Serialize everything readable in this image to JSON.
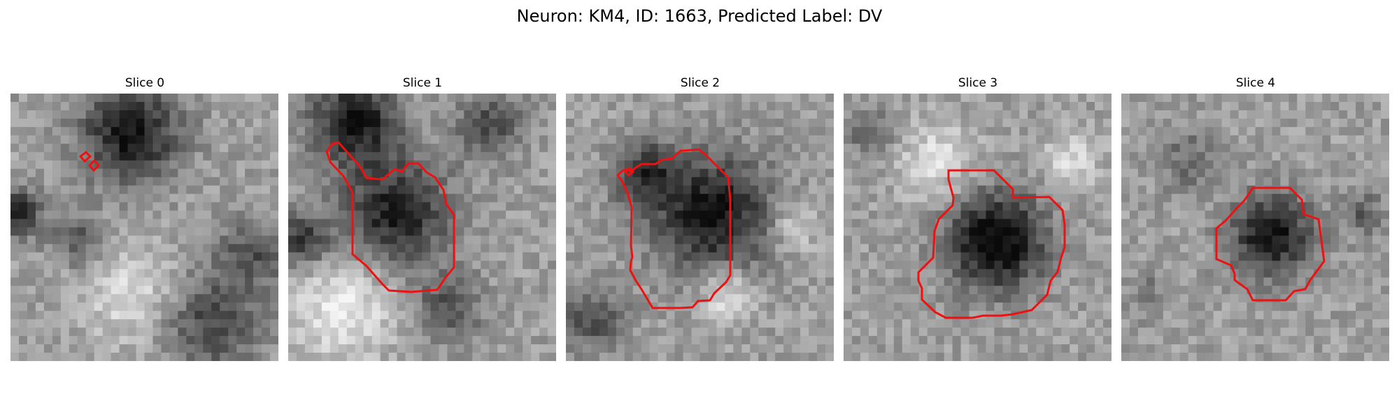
{
  "figure": {
    "title": "Neuron: KM4, ID: 1663, Predicted Label: DV",
    "colormap": "gray",
    "outline_color": "#ee1111"
  },
  "slices": [
    {
      "label": "Slice 0"
    },
    {
      "label": "Slice 1"
    },
    {
      "label": "Slice 2"
    },
    {
      "label": "Slice 3"
    },
    {
      "label": "Slice 4"
    }
  ]
}
